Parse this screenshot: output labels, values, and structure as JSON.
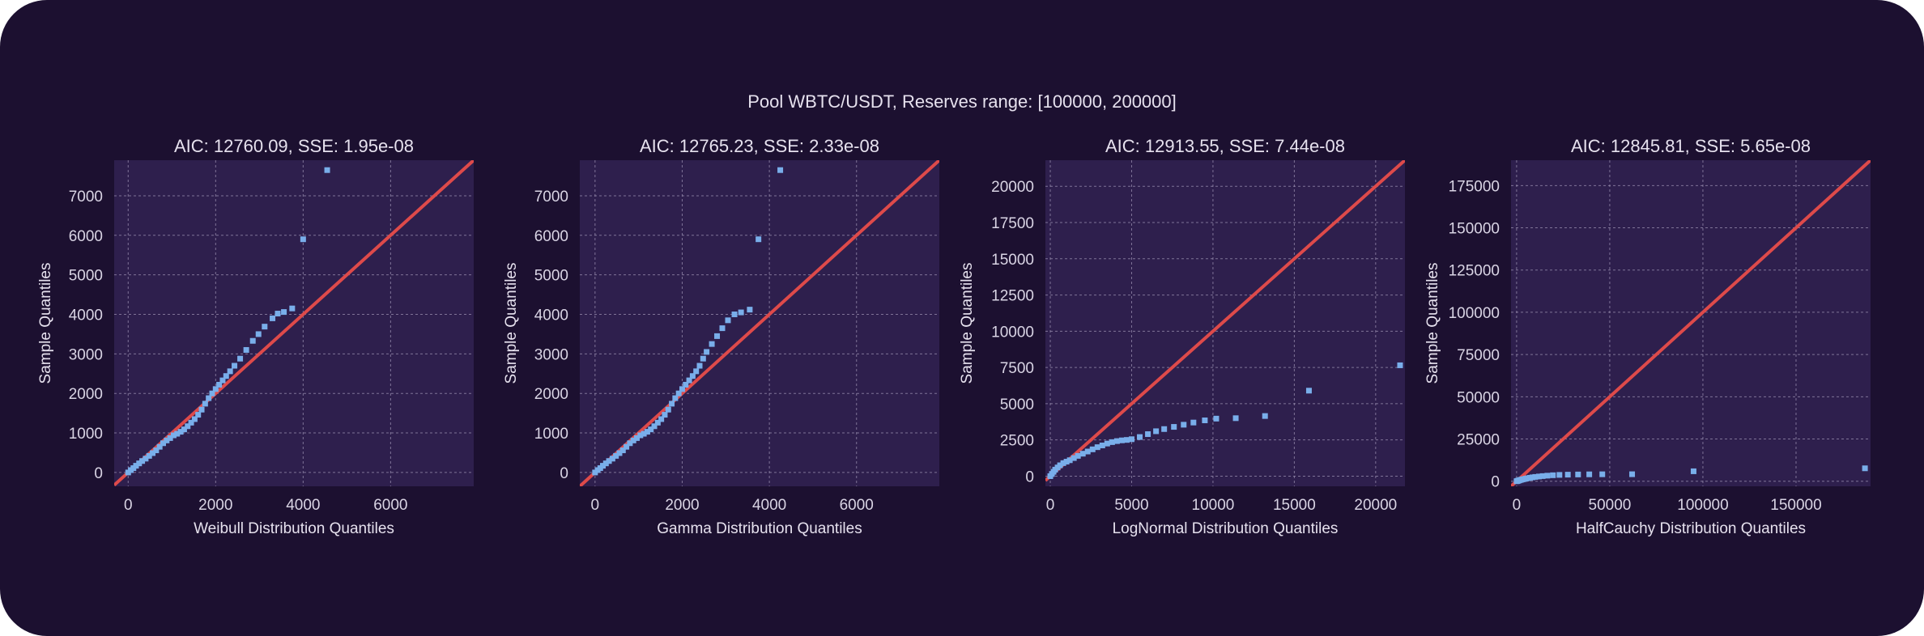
{
  "figure": {
    "suptitle": "Pool WBTC/USDT, Reserves range: [100000, 200000]"
  },
  "colors": {
    "background": "#1c1030",
    "axes_face": "#2e1f4d",
    "grid": "#9a8fb0",
    "points": "#79aeea",
    "reference_line": "#de4a4a",
    "text": "#e6e1ee"
  },
  "chart_data": [
    {
      "type": "scatter",
      "title": "AIC: 12760.09, SSE: 1.95e-08",
      "xlabel": "Weibull Distribution Quantiles",
      "ylabel": "Sample Quantiles",
      "xlim": [
        -320,
        7900
      ],
      "ylim": [
        -350,
        7900
      ],
      "xticks": [
        0,
        2000,
        4000,
        6000
      ],
      "xtick_labels": [
        "0",
        "2000",
        "4000",
        "6000"
      ],
      "yticks": [
        0,
        1000,
        2000,
        3000,
        4000,
        5000,
        6000,
        7000
      ],
      "ytick_labels": [
        "0",
        "1000",
        "2000",
        "3000",
        "4000",
        "5000",
        "6000",
        "7000"
      ],
      "grid": true,
      "reference_line": "y = x",
      "points": [
        [
          0,
          0
        ],
        [
          60,
          60
        ],
        [
          120,
          110
        ],
        [
          180,
          170
        ],
        [
          250,
          230
        ],
        [
          320,
          290
        ],
        [
          400,
          350
        ],
        [
          480,
          420
        ],
        [
          560,
          490
        ],
        [
          640,
          560
        ],
        [
          720,
          650
        ],
        [
          800,
          740
        ],
        [
          880,
          810
        ],
        [
          960,
          870
        ],
        [
          1040,
          940
        ],
        [
          1120,
          980
        ],
        [
          1200,
          1030
        ],
        [
          1280,
          1090
        ],
        [
          1360,
          1170
        ],
        [
          1440,
          1260
        ],
        [
          1520,
          1350
        ],
        [
          1600,
          1460
        ],
        [
          1680,
          1590
        ],
        [
          1760,
          1740
        ],
        [
          1840,
          1880
        ],
        [
          1920,
          2000
        ],
        [
          2000,
          2110
        ],
        [
          2080,
          2220
        ],
        [
          2160,
          2330
        ],
        [
          2240,
          2440
        ],
        [
          2330,
          2560
        ],
        [
          2430,
          2700
        ],
        [
          2560,
          2880
        ],
        [
          2700,
          3100
        ],
        [
          2850,
          3330
        ],
        [
          2980,
          3500
        ],
        [
          3120,
          3690
        ],
        [
          3300,
          3900
        ],
        [
          3420,
          4020
        ],
        [
          3560,
          4060
        ],
        [
          3750,
          4150
        ],
        [
          4000,
          5900
        ],
        [
          4550,
          7650
        ]
      ]
    },
    {
      "type": "scatter",
      "title": "AIC: 12765.23, SSE: 2.33e-08",
      "xlabel": "Gamma Distribution Quantiles",
      "ylabel": "Sample Quantiles",
      "xlim": [
        -350,
        7900
      ],
      "ylim": [
        -350,
        7900
      ],
      "xticks": [
        0,
        2000,
        4000,
        6000
      ],
      "xtick_labels": [
        "0",
        "2000",
        "4000",
        "6000"
      ],
      "yticks": [
        0,
        1000,
        2000,
        3000,
        4000,
        5000,
        6000,
        7000
      ],
      "ytick_labels": [
        "0",
        "1000",
        "2000",
        "3000",
        "4000",
        "5000",
        "6000",
        "7000"
      ],
      "grid": true,
      "reference_line": "y = x",
      "points": [
        [
          0,
          0
        ],
        [
          60,
          60
        ],
        [
          120,
          110
        ],
        [
          180,
          170
        ],
        [
          250,
          230
        ],
        [
          320,
          290
        ],
        [
          400,
          350
        ],
        [
          480,
          420
        ],
        [
          560,
          490
        ],
        [
          640,
          560
        ],
        [
          720,
          650
        ],
        [
          800,
          740
        ],
        [
          880,
          810
        ],
        [
          960,
          870
        ],
        [
          1040,
          940
        ],
        [
          1120,
          980
        ],
        [
          1200,
          1030
        ],
        [
          1280,
          1090
        ],
        [
          1360,
          1170
        ],
        [
          1440,
          1260
        ],
        [
          1520,
          1350
        ],
        [
          1600,
          1460
        ],
        [
          1680,
          1590
        ],
        [
          1760,
          1740
        ],
        [
          1840,
          1880
        ],
        [
          1920,
          2000
        ],
        [
          2000,
          2110
        ],
        [
          2080,
          2220
        ],
        [
          2160,
          2330
        ],
        [
          2240,
          2440
        ],
        [
          2320,
          2560
        ],
        [
          2400,
          2700
        ],
        [
          2480,
          2880
        ],
        [
          2560,
          3050
        ],
        [
          2680,
          3250
        ],
        [
          2800,
          3450
        ],
        [
          2920,
          3650
        ],
        [
          3050,
          3850
        ],
        [
          3200,
          4000
        ],
        [
          3350,
          4050
        ],
        [
          3550,
          4120
        ],
        [
          3750,
          5900
        ],
        [
          4250,
          7650
        ]
      ]
    },
    {
      "type": "scatter",
      "title": "AIC: 12913.55, SSE: 7.44e-08",
      "xlabel": "LogNormal Distribution Quantiles",
      "ylabel": "Sample Quantiles",
      "xlim": [
        -300,
        21800
      ],
      "ylim": [
        -700,
        21800
      ],
      "xticks": [
        0,
        5000,
        10000,
        15000,
        20000
      ],
      "xtick_labels": [
        "0",
        "5000",
        "10000",
        "15000",
        "20000"
      ],
      "yticks": [
        0,
        2500,
        5000,
        7500,
        10000,
        12500,
        15000,
        17500,
        20000
      ],
      "ytick_labels": [
        "0",
        "2500",
        "5000",
        "7500",
        "10000",
        "12500",
        "15000",
        "17500",
        "20000"
      ],
      "grid": true,
      "reference_line": "y = x",
      "points": [
        [
          0,
          0
        ],
        [
          100,
          150
        ],
        [
          200,
          300
        ],
        [
          300,
          450
        ],
        [
          450,
          600
        ],
        [
          600,
          750
        ],
        [
          800,
          900
        ],
        [
          1000,
          1000
        ],
        [
          1200,
          1100
        ],
        [
          1450,
          1250
        ],
        [
          1700,
          1400
        ],
        [
          2000,
          1550
        ],
        [
          2300,
          1700
        ],
        [
          2600,
          1850
        ],
        [
          2900,
          2000
        ],
        [
          3200,
          2120
        ],
        [
          3500,
          2250
        ],
        [
          3800,
          2350
        ],
        [
          4100,
          2420
        ],
        [
          4400,
          2470
        ],
        [
          4700,
          2500
        ],
        [
          5000,
          2550
        ],
        [
          5500,
          2700
        ],
        [
          6000,
          2900
        ],
        [
          6500,
          3100
        ],
        [
          7000,
          3250
        ],
        [
          7600,
          3400
        ],
        [
          8200,
          3550
        ],
        [
          8800,
          3700
        ],
        [
          9500,
          3850
        ],
        [
          10200,
          3970
        ],
        [
          11400,
          4000
        ],
        [
          13200,
          4150
        ],
        [
          15900,
          5900
        ],
        [
          21500,
          7650
        ]
      ]
    },
    {
      "type": "scatter",
      "title": "AIC: 12845.81, SSE: 5.65e-08",
      "xlabel": "HalfCauchy Distribution Quantiles",
      "ylabel": "Sample Quantiles",
      "xlim": [
        -3000,
        190000
      ],
      "ylim": [
        -3000,
        190000
      ],
      "xticks": [
        0,
        50000,
        100000,
        150000
      ],
      "xtick_labels": [
        "0",
        "50000",
        "100000",
        "150000"
      ],
      "yticks": [
        0,
        25000,
        50000,
        75000,
        100000,
        125000,
        150000,
        175000
      ],
      "ytick_labels": [
        "0",
        "25000",
        "50000",
        "75000",
        "100000",
        "125000",
        "150000",
        "175000"
      ],
      "grid": true,
      "reference_line": "y = x",
      "points": [
        [
          0,
          0
        ],
        [
          400,
          150
        ],
        [
          800,
          300
        ],
        [
          1300,
          500
        ],
        [
          1800,
          700
        ],
        [
          2500,
          900
        ],
        [
          3200,
          1100
        ],
        [
          4000,
          1300
        ],
        [
          5000,
          1550
        ],
        [
          6000,
          1800
        ],
        [
          7200,
          2050
        ],
        [
          8500,
          2300
        ],
        [
          10000,
          2550
        ],
        [
          12000,
          2800
        ],
        [
          14000,
          3050
        ],
        [
          16500,
          3300
        ],
        [
          19500,
          3550
        ],
        [
          23000,
          3750
        ],
        [
          27500,
          3900
        ],
        [
          33000,
          4000
        ],
        [
          39000,
          4080
        ],
        [
          46000,
          4120
        ],
        [
          62000,
          4150
        ],
        [
          95000,
          5900
        ],
        [
          187000,
          7650
        ]
      ]
    }
  ]
}
